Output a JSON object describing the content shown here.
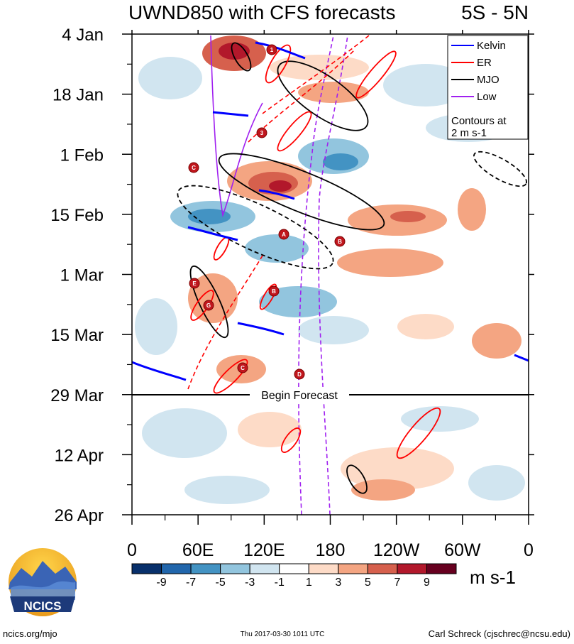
{
  "chart_data": {
    "type": "heatmap",
    "title": "UWND850 with CFS forecasts",
    "region": "5S - 5N",
    "y_tick_labels": [
      "4 Jan",
      "18 Jan",
      "1 Feb",
      "15 Feb",
      "1 Mar",
      "15 Mar",
      "29 Mar",
      "12 Apr",
      "26 Apr"
    ],
    "x_tick_labels": [
      "0",
      "60E",
      "120E",
      "180",
      "120W",
      "60W",
      "0"
    ],
    "x_range_deg_east": [
      0,
      360
    ],
    "y_range_dates": [
      "2017-01-04",
      "2017-04-26"
    ],
    "forecast_start": "2017-03-29",
    "forecast_label": "Begin Forecast",
    "colorbar": {
      "levels": [
        "-9",
        "-7",
        "-5",
        "-3",
        "-1",
        "1",
        "3",
        "5",
        "7",
        "9"
      ],
      "colors": [
        "#08306b",
        "#2166ac",
        "#4393c3",
        "#92c5de",
        "#d1e5f0",
        "#ffffff",
        "#fddbc7",
        "#f4a582",
        "#d6604d",
        "#b2182b",
        "#67001f"
      ],
      "units": "m s-1"
    },
    "legend": {
      "placement": "top-right",
      "entries": [
        {
          "label": "Kelvin",
          "color": "#0000ff"
        },
        {
          "label": "ER",
          "color": "#ff0000"
        },
        {
          "label": "MJO",
          "color": "#000000"
        },
        {
          "label": "Low",
          "color": "#a020f0"
        }
      ],
      "note_line1": "Contours at",
      "note_line2": "2 m s-1"
    },
    "storm_markers": [
      "1",
      "3",
      "C",
      "A",
      "B",
      "E",
      "G",
      "B",
      "C",
      "D"
    ]
  },
  "footer": {
    "logo_text": "NCICS",
    "website": "ncics.org/mjo",
    "timestamp": "Thu 2017-03-30 1011 UTC",
    "author": "Carl Schreck (cjschrec@ncsu.edu)"
  }
}
